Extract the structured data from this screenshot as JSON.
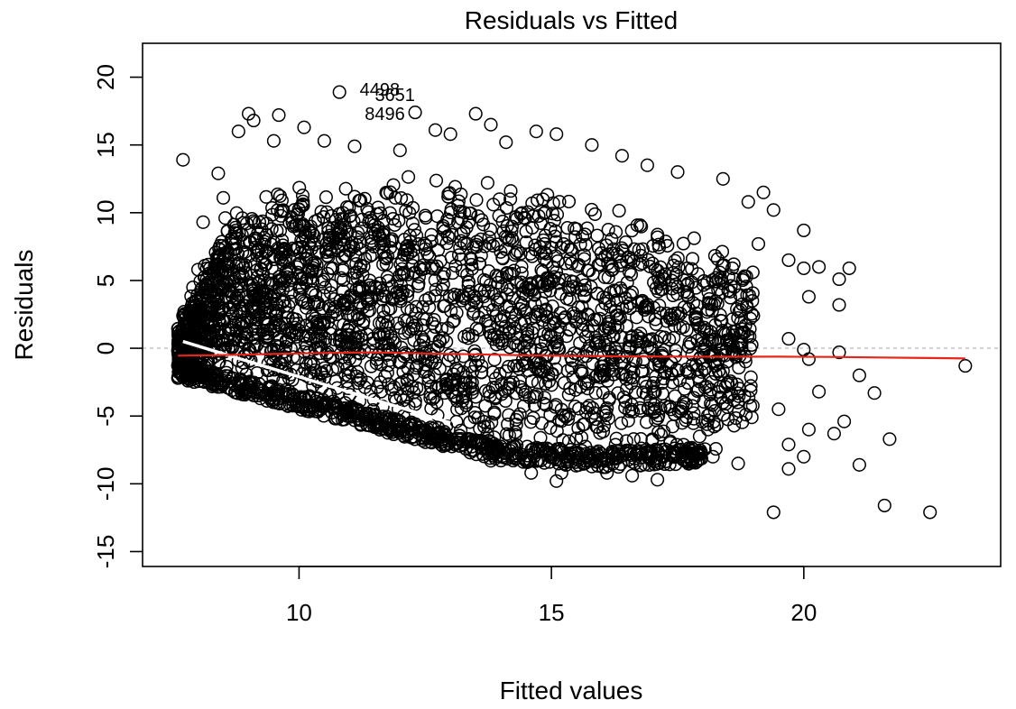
{
  "chart_data": {
    "type": "scatter",
    "title": "Residuals vs Fitted",
    "xlabel": "Fitted values",
    "ylabel": "Residuals",
    "xlim": [
      6.9,
      23.9
    ],
    "ylim": [
      -16.1,
      22.5
    ],
    "x_ticks": [
      10,
      15,
      20
    ],
    "y_ticks": [
      -15,
      -10,
      -5,
      0,
      5,
      10,
      15,
      20
    ],
    "x_tick_labels": [
      "10",
      "15",
      "20"
    ],
    "y_tick_labels": [
      "-15",
      "-10",
      "-5",
      "0",
      "5",
      "10",
      "15",
      "20"
    ],
    "reference_line": {
      "y": 0,
      "color": "#bdbdbd",
      "style": "dashed"
    },
    "point_style": {
      "shape": "open-circle",
      "color": "#000000"
    },
    "smoother": {
      "color": "#e8251a",
      "x": [
        7.6,
        8.5,
        9.5,
        10.5,
        11.5,
        12.5,
        13.5,
        14.5,
        15.5,
        16.5,
        17.5,
        18.5,
        19.5,
        20.5,
        21.5,
        22.5,
        23.2
      ],
      "y": [
        -0.55,
        -0.5,
        -0.42,
        -0.35,
        -0.3,
        -0.38,
        -0.45,
        -0.52,
        -0.56,
        -0.6,
        -0.62,
        -0.63,
        -0.62,
        -0.64,
        -0.68,
        -0.72,
        -0.75
      ]
    },
    "points": [
      {
        "x": 7.7,
        "y": 13.9
      },
      {
        "x": 9.0,
        "y": 17.3
      },
      {
        "x": 9.6,
        "y": 17.2
      },
      {
        "x": 10.1,
        "y": 16.3
      },
      {
        "x": 9.1,
        "y": 16.8
      },
      {
        "x": 8.8,
        "y": 16.0
      },
      {
        "x": 10.5,
        "y": 15.3
      },
      {
        "x": 10.8,
        "y": 18.9
      },
      {
        "x": 12.3,
        "y": 17.4
      },
      {
        "x": 12.7,
        "y": 16.1
      },
      {
        "x": 13.0,
        "y": 15.8
      },
      {
        "x": 13.5,
        "y": 17.3
      },
      {
        "x": 14.1,
        "y": 15.2
      },
      {
        "x": 14.7,
        "y": 16.0
      },
      {
        "x": 15.1,
        "y": 15.8
      },
      {
        "x": 15.8,
        "y": 15.0
      },
      {
        "x": 16.4,
        "y": 14.2
      },
      {
        "x": 16.9,
        "y": 13.5
      },
      {
        "x": 17.5,
        "y": 13.0
      },
      {
        "x": 18.4,
        "y": 12.5
      },
      {
        "x": 18.9,
        "y": 10.8
      },
      {
        "x": 19.2,
        "y": 11.5
      },
      {
        "x": 19.4,
        "y": 10.2
      },
      {
        "x": 20.0,
        "y": 8.7
      },
      {
        "x": 19.1,
        "y": 7.7
      },
      {
        "x": 19.7,
        "y": 6.5
      },
      {
        "x": 20.0,
        "y": 5.9
      },
      {
        "x": 20.3,
        "y": 6.0
      },
      {
        "x": 20.7,
        "y": 5.1
      },
      {
        "x": 20.9,
        "y": 5.9
      },
      {
        "x": 20.1,
        "y": 3.8
      },
      {
        "x": 20.7,
        "y": 3.2
      },
      {
        "x": 19.0,
        "y": 2.4
      },
      {
        "x": 19.7,
        "y": 0.7
      },
      {
        "x": 20.0,
        "y": -0.1
      },
      {
        "x": 20.7,
        "y": -0.3
      },
      {
        "x": 20.1,
        "y": -0.8
      },
      {
        "x": 23.2,
        "y": -1.3
      },
      {
        "x": 21.1,
        "y": -2.0
      },
      {
        "x": 21.4,
        "y": -3.3
      },
      {
        "x": 20.3,
        "y": -3.2
      },
      {
        "x": 19.5,
        "y": -4.5
      },
      {
        "x": 20.8,
        "y": -5.4
      },
      {
        "x": 20.1,
        "y": -6.0
      },
      {
        "x": 20.6,
        "y": -6.3
      },
      {
        "x": 19.7,
        "y": -7.1
      },
      {
        "x": 21.7,
        "y": -6.7
      },
      {
        "x": 21.1,
        "y": -8.6
      },
      {
        "x": 19.7,
        "y": -8.9
      },
      {
        "x": 20.0,
        "y": -8.0
      },
      {
        "x": 19.4,
        "y": -12.1
      },
      {
        "x": 21.6,
        "y": -11.6
      },
      {
        "x": 22.5,
        "y": -12.1
      },
      {
        "x": 18.7,
        "y": -8.5
      },
      {
        "x": 18.2,
        "y": -8.0
      },
      {
        "x": 17.1,
        "y": -9.7
      },
      {
        "x": 16.6,
        "y": -9.4
      },
      {
        "x": 16.1,
        "y": -9.2
      },
      {
        "x": 15.2,
        "y": -9.2
      },
      {
        "x": 14.6,
        "y": -9.2
      },
      {
        "x": 15.1,
        "y": -9.8
      },
      {
        "x": 13.8,
        "y": -8.3
      },
      {
        "x": 7.6,
        "y": -2.2
      },
      {
        "x": 7.8,
        "y": -2.4
      },
      {
        "x": 7.6,
        "y": -0.2
      },
      {
        "x": 7.8,
        "y": 0.3
      },
      {
        "x": 7.7,
        "y": 2.4
      },
      {
        "x": 7.9,
        "y": 4.5
      },
      {
        "x": 8.0,
        "y": 5.8
      },
      {
        "x": 8.1,
        "y": 9.3
      },
      {
        "x": 8.4,
        "y": 12.9
      },
      {
        "x": 8.5,
        "y": 11.1
      },
      {
        "x": 9.5,
        "y": 15.3
      },
      {
        "x": 11.1,
        "y": 14.9
      },
      {
        "x": 12.0,
        "y": 14.6
      },
      {
        "x": 13.8,
        "y": 16.5
      }
    ],
    "cloud": {
      "x_range": [
        7.6,
        19.0
      ],
      "upper_edge": [
        [
          7.6,
          2.0
        ],
        [
          8.5,
          10.0
        ],
        [
          9.5,
          12.0
        ],
        [
          11.0,
          13.0
        ],
        [
          13.0,
          13.0
        ],
        [
          15.0,
          12.5
        ],
        [
          17.0,
          10.0
        ],
        [
          18.5,
          8.0
        ],
        [
          19.0,
          7.0
        ]
      ],
      "lower_edge": [
        [
          7.6,
          -2.2
        ],
        [
          10.0,
          -4.5
        ],
        [
          12.0,
          -6.5
        ],
        [
          14.0,
          -8.3
        ],
        [
          16.0,
          -8.8
        ],
        [
          18.0,
          -8.5
        ],
        [
          19.0,
          -7.0
        ]
      ]
    },
    "annotations": [
      {
        "text": "4498",
        "x": 11.6,
        "y": 19.1
      },
      {
        "text": "3651",
        "x": 11.9,
        "y": 18.7
      },
      {
        "text": "8496",
        "x": 11.7,
        "y": 17.3
      }
    ]
  }
}
